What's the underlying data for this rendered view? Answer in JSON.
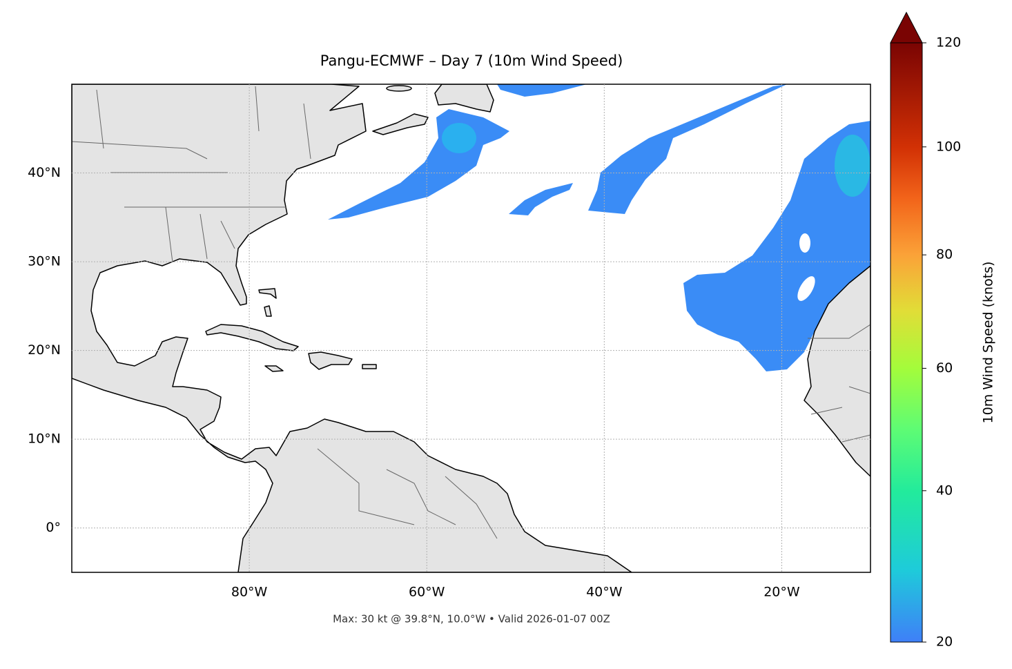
{
  "chart_data": {
    "type": "map",
    "title": "Pangu-ECMWF – Day 7 (10m Wind Speed)",
    "annotation": "Max: 30 kt @ 39.8°N, 10.0°W • Valid 2026-01-07 00Z",
    "xlim": [
      -100,
      -10
    ],
    "ylim": [
      -5,
      50
    ],
    "xticks": [
      {
        "value": -80,
        "label": "80°W"
      },
      {
        "value": -60,
        "label": "60°W"
      },
      {
        "value": -40,
        "label": "40°W"
      },
      {
        "value": -20,
        "label": "20°W"
      }
    ],
    "yticks": [
      {
        "value": 0,
        "label": "0°"
      },
      {
        "value": 10,
        "label": "10°N"
      },
      {
        "value": 20,
        "label": "20°N"
      },
      {
        "value": 30,
        "label": "30°N"
      },
      {
        "value": 40,
        "label": "40°N"
      }
    ],
    "grid": true,
    "colorbar": {
      "label": "10m Wind Speed (knots)",
      "lim": [
        20,
        120
      ],
      "ticks": [
        20,
        40,
        60,
        80,
        100,
        120
      ],
      "extend": "max"
    }
  }
}
